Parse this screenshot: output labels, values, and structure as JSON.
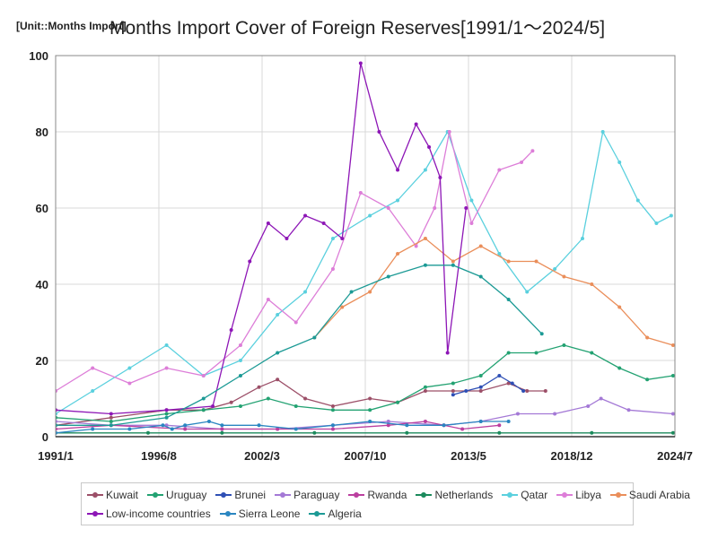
{
  "header": {
    "unit": "[Unit::Months Import]",
    "title": "Months Import Cover of Foreign Reserves[1991/1～2024/5]"
  },
  "chart_data": {
    "type": "line",
    "title": "Months Import Cover of Foreign Reserves[1991/1～2024/5]",
    "unit": "[Unit::Months Import]",
    "x_tick_labels": [
      "1991/1",
      "1996/8",
      "2002/3",
      "2007/10",
      "2013/5",
      "2018/12",
      "2024/7"
    ],
    "xlim": [
      1991.0,
      2024.5
    ],
    "y_tick_labels": [
      "0",
      "20",
      "40",
      "60",
      "80",
      "100"
    ],
    "ylim": [
      0,
      100
    ],
    "grid": true,
    "legend_position": "bottom",
    "series": [
      {
        "name": "Kuwait",
        "color": "#9c4f68",
        "x": [
          1991,
          1994,
          1997,
          1999,
          2000.5,
          2002,
          2003,
          2004.5,
          2006,
          2008,
          2009.5,
          2011,
          2012.5,
          2014,
          2015.5,
          2016.5,
          2017.5
        ],
        "y": [
          3,
          5,
          7,
          7,
          9,
          13,
          15,
          10,
          8,
          10,
          9,
          12,
          12,
          12,
          14,
          12,
          12
        ]
      },
      {
        "name": "Uruguay",
        "color": "#23a272",
        "x": [
          1991,
          1994,
          1997,
          1999,
          2001,
          2002.5,
          2004,
          2006,
          2008,
          2009.5,
          2011,
          2012.5,
          2014,
          2015.5,
          2017,
          2018.5,
          2020,
          2021.5,
          2023,
          2024.4
        ],
        "y": [
          5,
          4,
          6,
          7,
          8,
          10,
          8,
          7,
          7,
          9,
          13,
          14,
          16,
          22,
          22,
          24,
          22,
          18,
          15,
          16
        ]
      },
      {
        "name": "Brunei",
        "color": "#2e4fb5",
        "x": [
          2012.5,
          2013.2,
          2014,
          2015,
          2015.7,
          2016.3
        ],
        "y": [
          11,
          12,
          13,
          16,
          14,
          12
        ]
      },
      {
        "name": "Paraguay",
        "color": "#a479d6",
        "x": [
          1991,
          1994,
          1997,
          2000,
          2003,
          2006,
          2009,
          2012,
          2014,
          2016,
          2018,
          2019.8,
          2020.5,
          2022,
          2024.4
        ],
        "y": [
          4,
          3,
          3,
          2,
          2,
          3,
          4,
          3,
          4,
          6,
          6,
          8,
          10,
          7,
          6
        ]
      },
      {
        "name": "Rwanda",
        "color": "#bb3f9f",
        "x": [
          1991,
          1994,
          1998,
          2000,
          2003,
          2006,
          2009,
          2011,
          2012,
          2013,
          2015
        ],
        "y": [
          2,
          3,
          2,
          2,
          2,
          2,
          3,
          4,
          3,
          2,
          3
        ]
      },
      {
        "name": "Netherlands",
        "color": "#1b8a5c",
        "x": [
          1991,
          1996,
          2000,
          2005,
          2010,
          2015,
          2020,
          2024.4
        ],
        "y": [
          1,
          1,
          1,
          1,
          1,
          1,
          1,
          1
        ]
      },
      {
        "name": "Qatar",
        "color": "#5ad0de",
        "x": [
          1991,
          1993,
          1995,
          1997,
          1999,
          2001,
          2003,
          2004.5,
          2006,
          2008,
          2009.5,
          2011,
          2012.2,
          2013.5,
          2015,
          2016.5,
          2018,
          2019.5,
          2020.6,
          2021.5,
          2022.5,
          2023.5,
          2024.3
        ],
        "y": [
          6,
          12,
          18,
          24,
          16,
          20,
          32,
          38,
          52,
          58,
          62,
          70,
          80,
          62,
          48,
          38,
          44,
          52,
          80,
          72,
          62,
          56,
          58
        ]
      },
      {
        "name": "Libya",
        "color": "#dd7ed8",
        "x": [
          1991,
          1993,
          1995,
          1997,
          1999,
          2001,
          2002.5,
          2004,
          2006,
          2007.5,
          2009,
          2010.5,
          2011.5,
          2012.3,
          2013.5,
          2015,
          2016.2,
          2016.8
        ],
        "y": [
          12,
          18,
          14,
          18,
          16,
          24,
          36,
          30,
          44,
          64,
          60,
          50,
          60,
          80,
          56,
          70,
          72,
          75
        ]
      },
      {
        "name": "Saudi Arabia",
        "color": "#ea8e5a",
        "x": [
          2005,
          2006.5,
          2008,
          2009.5,
          2011,
          2012.5,
          2014,
          2015.5,
          2017,
          2018.5,
          2020,
          2021.5,
          2023,
          2024.4
        ],
        "y": [
          26,
          34,
          38,
          48,
          52,
          46,
          50,
          46,
          46,
          42,
          40,
          34,
          26,
          24
        ]
      },
      {
        "name": "Low-income countries",
        "color": "#8d16b6",
        "x": [
          1991,
          1994,
          1997,
          1999.5,
          2000.5,
          2001.5,
          2002.5,
          2003.5,
          2004.5,
          2005.5,
          2006.5,
          2007.5,
          2008.5,
          2009.5,
          2010.5,
          2011.2,
          2011.8,
          2012.2,
          2013.2
        ],
        "y": [
          7,
          6,
          7,
          8,
          28,
          46,
          56,
          52,
          58,
          56,
          52,
          98,
          80,
          70,
          82,
          76,
          68,
          22,
          60
        ]
      },
      {
        "name": "Sierra Leone",
        "color": "#2a86c1",
        "x": [
          1991,
          1993,
          1995,
          1996.8,
          1997.3,
          1998,
          1999.3,
          2000,
          2002,
          2004,
          2006,
          2008,
          2010,
          2012,
          2014,
          2015.5
        ],
        "y": [
          1,
          2,
          2,
          3,
          2,
          3,
          4,
          3,
          3,
          2,
          3,
          4,
          3,
          3,
          4,
          4
        ]
      },
      {
        "name": "Algeria",
        "color": "#1c9a95",
        "x": [
          1991,
          1994,
          1997,
          1999,
          2001,
          2003,
          2005,
          2007,
          2009,
          2011,
          2012.5,
          2014,
          2015.5,
          2017.3
        ],
        "y": [
          3,
          3,
          5,
          10,
          16,
          22,
          26,
          38,
          42,
          45,
          45,
          42,
          36,
          27
        ]
      }
    ]
  }
}
